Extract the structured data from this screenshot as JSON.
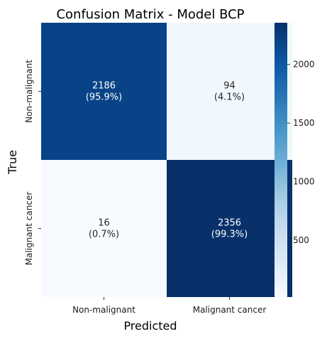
{
  "chart_data": {
    "type": "heatmap",
    "title": "Confusion Matrix - Model BCP",
    "xlabel": "Predicted",
    "ylabel": "True",
    "x_categories": [
      "Non-malignant",
      "Malignant cancer"
    ],
    "y_categories": [
      "Non-malignant",
      "Malignant cancer"
    ],
    "values": [
      [
        2186,
        94
      ],
      [
        16,
        2356
      ]
    ],
    "cell_labels": [
      [
        {
          "count": "2186",
          "percent": "(95.9%)"
        },
        {
          "count": "94",
          "percent": "(4.1%)"
        }
      ],
      [
        {
          "count": "16",
          "percent": "(0.7%)"
        },
        {
          "count": "2356",
          "percent": "(99.3%)"
        }
      ]
    ],
    "colorscale": "Blues",
    "colorbar": {
      "range": [
        16,
        2356
      ],
      "ticks": [
        500,
        1000,
        1500,
        2000
      ],
      "tick_labels": [
        "500",
        "1000",
        "1500",
        "2000"
      ]
    },
    "colors": {
      "low": "#f7fbff",
      "high": "#08306b",
      "text_dark": "#262626",
      "text_light": "#ffffff"
    }
  }
}
